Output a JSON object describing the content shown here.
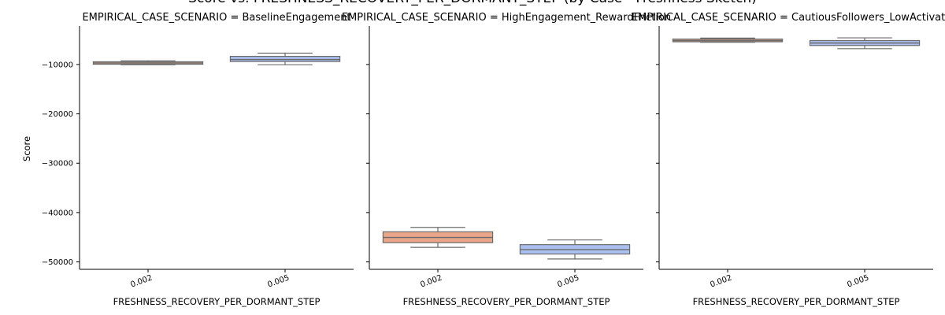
{
  "title": "Score vs. FRESHNESS_RECOVERY_PER_DORMANT_STEP (by Case - Freshness Sketch)",
  "ylabel": "Score",
  "chart_data": {
    "type": "box",
    "title": "Score vs. FRESHNESS_RECOVERY_PER_DORMANT_STEP (by Case - Freshness Sketch)",
    "ylabel": "Score",
    "ylim": [
      -51500,
      -2200
    ],
    "yticks": [
      -10000,
      -20000,
      -30000,
      -40000,
      -50000
    ],
    "colors": {
      "0.002": "#e8a58a",
      "0.005": "#aabfee"
    },
    "panels": [
      {
        "title": "EMPIRICAL_CASE_SCENARIO = BaselineEngagement",
        "xlabel": "FRESHNESS_RECOVERY_PER_DORMANT_STEP",
        "categories": [
          "0.002",
          "0.005"
        ],
        "boxes": [
          {
            "category": "0.002",
            "whislo": -10050,
            "q1": -9950,
            "med": -9700,
            "q3": -9450,
            "whishi": -9250
          },
          {
            "category": "0.005",
            "whislo": -10050,
            "q1": -9400,
            "med": -9000,
            "q3": -8350,
            "whishi": -7700
          }
        ]
      },
      {
        "title": "EMPIRICAL_CASE_SCENARIO = HighEngagement_RewardFriction",
        "xlabel": "FRESHNESS_RECOVERY_PER_DORMANT_STEP",
        "categories": [
          "0.002",
          "0.005"
        ],
        "boxes": [
          {
            "category": "0.002",
            "whislo": -47050,
            "q1": -46100,
            "med": -45050,
            "q3": -43900,
            "whishi": -43000
          },
          {
            "category": "0.005",
            "whislo": -49400,
            "q1": -48400,
            "med": -47500,
            "q3": -46500,
            "whishi": -45550
          }
        ]
      },
      {
        "title": "EMPIRICAL_CASE_SCENARIO = CautiousFollowers_LowActivation",
        "xlabel": "FRESHNESS_RECOVERY_PER_DORMANT_STEP",
        "categories": [
          "0.002",
          "0.005"
        ],
        "boxes": [
          {
            "category": "0.002",
            "whislo": -5500,
            "q1": -5400,
            "med": -5150,
            "q3": -4850,
            "whishi": -4650
          },
          {
            "category": "0.005",
            "whislo": -6800,
            "q1": -6150,
            "med": -5650,
            "q3": -5150,
            "whishi": -4600
          }
        ]
      }
    ]
  }
}
